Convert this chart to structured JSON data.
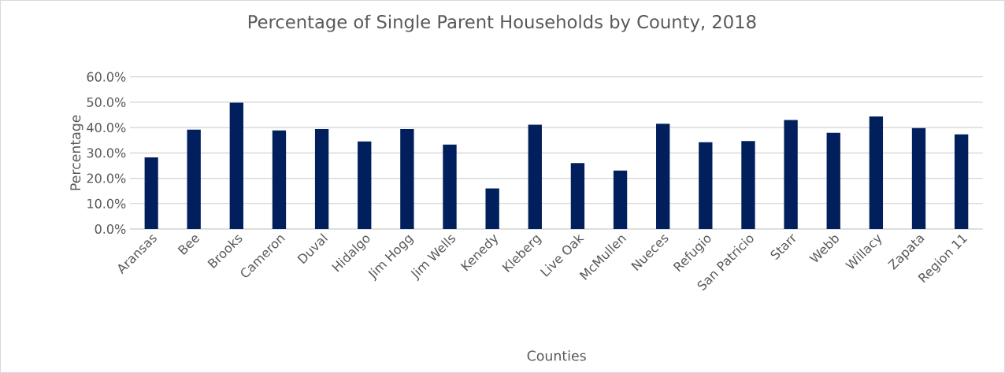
{
  "chart_data": {
    "type": "bar",
    "title": "Percentage of Single Parent Households by County, 2018",
    "xlabel": "Counties",
    "ylabel": "Percentage",
    "categories": [
      "Aransas",
      "Bee",
      "Brooks",
      "Cameron",
      "Duval",
      "Hidalgo",
      "Jim Hogg",
      "Jim Wells",
      "Kenedy",
      "Kleberg",
      "Live Oak",
      "McMullen",
      "Nueces",
      "Refugio",
      "San Patricio",
      "Starr",
      "Webb",
      "Willacy",
      "Zapata",
      "Region 11"
    ],
    "values": [
      28.2,
      39.2,
      49.8,
      38.9,
      39.4,
      34.5,
      39.4,
      33.3,
      16.0,
      41.1,
      26.0,
      23.0,
      41.5,
      34.2,
      34.7,
      43.0,
      37.9,
      44.4,
      39.8,
      37.3
    ],
    "color": "#001f5c",
    "ylim": [
      0,
      60
    ],
    "yticks": [
      {
        "value": 0,
        "label": "0.0%"
      },
      {
        "value": 10,
        "label": "10.0%"
      },
      {
        "value": 20,
        "label": "20.0%"
      },
      {
        "value": 30,
        "label": "30.0%"
      },
      {
        "value": 40,
        "label": "40.0%"
      },
      {
        "value": 50,
        "label": "50.0%"
      },
      {
        "value": 60,
        "label": "60.0%"
      }
    ],
    "grid": "y"
  }
}
